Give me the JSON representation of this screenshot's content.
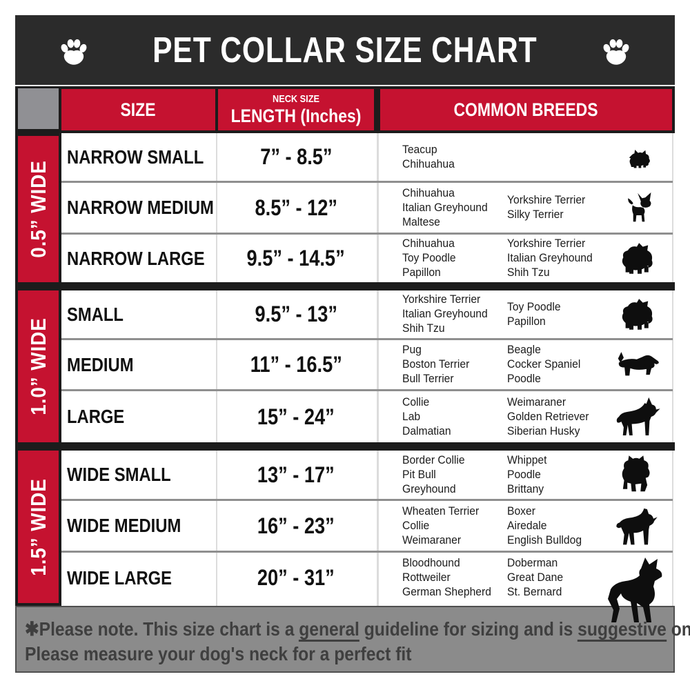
{
  "title": "PET COLLAR SIZE CHART",
  "header": {
    "size": "SIZE",
    "neck_size_small": "NECK SIZE",
    "neck_size_main": "LENGTH (Inches)",
    "breeds": "COMMON BREEDS"
  },
  "side_labels": [
    "0.5” WIDE",
    "1.0” WIDE",
    "1.5” WIDE"
  ],
  "rows": [
    {
      "size": "NARROW SMALL",
      "length": "7” - 8.5”",
      "breeds_col1": [
        "Teacup",
        "Chihuahua"
      ],
      "breeds_col2": [],
      "icon": "yorkshire-terrier-icon"
    },
    {
      "size": "NARROW MEDIUM",
      "length": "8.5” - 12”",
      "breeds_col1": [
        "Chihuahua",
        "Italian Greyhound",
        "Maltese"
      ],
      "breeds_col2": [
        "Yorkshire Terrier",
        "Silky Terrier"
      ],
      "icon": "chihuahua-icon"
    },
    {
      "size": "NARROW LARGE",
      "length": "9.5” - 14.5”",
      "breeds_col1": [
        "Chihuahua",
        "Toy Poodle",
        "Papillon"
      ],
      "breeds_col2": [
        "Yorkshire Terrier",
        "Italian Greyhound",
        "Shih Tzu"
      ],
      "icon": "pomeranian-icon"
    },
    {
      "size": "SMALL",
      "length": "9.5” - 13”",
      "breeds_col1": [
        "Yorkshire Terrier",
        "Italian Greyhound",
        "Shih Tzu"
      ],
      "breeds_col2": [
        "Toy Poodle",
        "Papillon"
      ],
      "icon": "pekingese-icon"
    },
    {
      "size": "MEDIUM",
      "length": "11” - 16.5”",
      "breeds_col1": [
        "Pug",
        "Boston Terrier",
        "Bull Terrier"
      ],
      "breeds_col2": [
        "Beagle",
        "Cocker Spaniel",
        "Poodle"
      ],
      "icon": "beagle-icon"
    },
    {
      "size": "LARGE",
      "length": "15” - 24”",
      "breeds_col1": [
        "Collie",
        "Lab",
        "Dalmatian"
      ],
      "breeds_col2": [
        "Weimaraner",
        "Golden Retriever",
        "Siberian Husky"
      ],
      "icon": "shepherd-icon"
    },
    {
      "size": "WIDE SMALL",
      "length": "13” - 17”",
      "breeds_col1": [
        "Border Collie",
        "Pit Bull",
        "Greyhound"
      ],
      "breeds_col2": [
        "Whippet",
        "Poodle",
        "Brittany"
      ],
      "icon": "bulldog-icon"
    },
    {
      "size": "WIDE MEDIUM",
      "length": "16” - 23”",
      "breeds_col1": [
        "Wheaten Terrier",
        "Collie",
        "Weimaraner"
      ],
      "breeds_col2": [
        "Boxer",
        "Airedale",
        "English Bulldog"
      ],
      "icon": "pitbull-icon"
    },
    {
      "size": "WIDE LARGE",
      "length": "20” - 31”",
      "breeds_col1": [
        "Bloodhound",
        "Rottweiler",
        "German Shepherd"
      ],
      "breeds_col2": [
        "Doberman",
        "Great Dane",
        "St. Bernard"
      ],
      "icon": "doberman-icon"
    }
  ],
  "footer": {
    "line1_pre": "✱Please note. This size chart is a ",
    "line1_u1": "general",
    "line1_mid": " guideline for sizing and is ",
    "line1_u2": "suggestive",
    "line1_post": " only.",
    "line2": "Please measure your dog's neck for a perfect fit"
  },
  "colors": {
    "accent_red": "#c51230",
    "title_bar": "#2b2b2b",
    "corner_gray": "#909094",
    "footer_gray": "#8b8b8b"
  }
}
